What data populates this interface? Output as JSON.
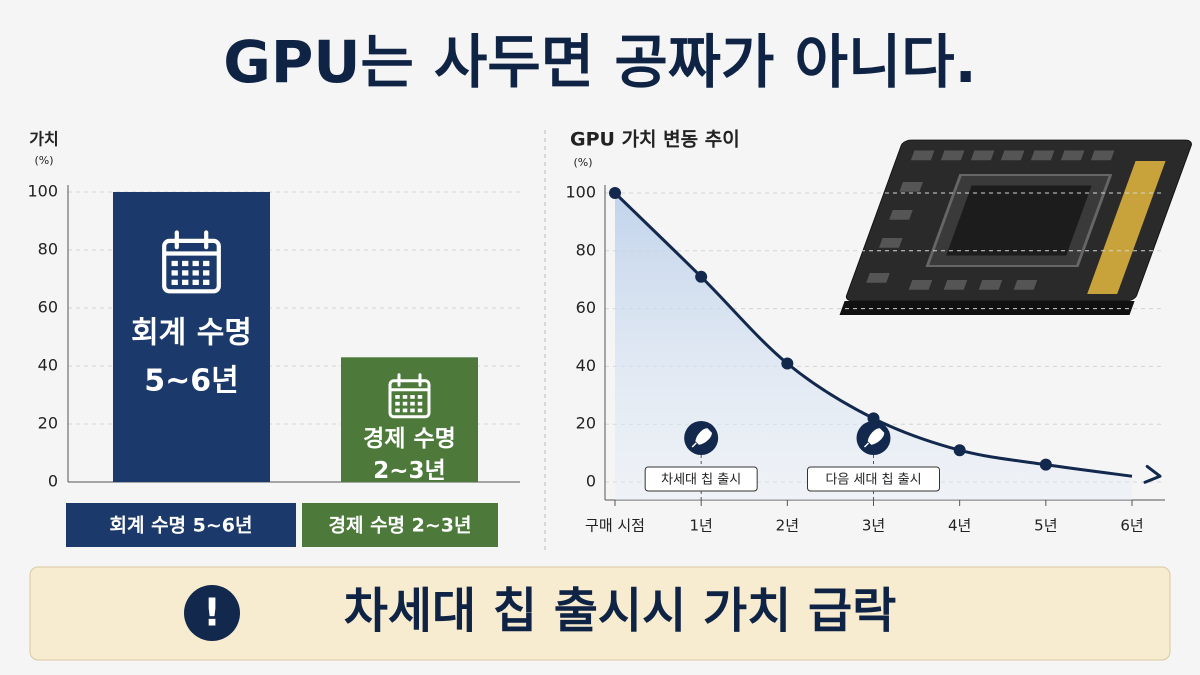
{
  "title": "GPU는 사두면 공짜가 아니다.",
  "chart_data": [
    {
      "type": "bar",
      "y_label": "가치",
      "y_unit": "(%)",
      "categories": [
        "회계 수명 5~6년",
        "경제 수명 2~3년"
      ],
      "bar_labels": [
        [
          "회계 수명",
          "5~6년"
        ],
        [
          "경제 수명",
          "2~3년"
        ]
      ],
      "values": [
        100,
        43
      ],
      "colors": [
        "#1b3a6b",
        "#4d7a3b"
      ],
      "ylim": [
        0,
        100
      ],
      "yticks": [
        0,
        20,
        40,
        60,
        80,
        100
      ],
      "grid": true
    },
    {
      "type": "line",
      "title": "GPU 가치 변동 추이",
      "y_unit": "(%)",
      "categories": [
        "구매 시점",
        "1년",
        "2년",
        "3년",
        "4년",
        "5년",
        "6년"
      ],
      "values": [
        100,
        71,
        41,
        22,
        11,
        6,
        2
      ],
      "color": "#13284d",
      "area_color": "#c9d9ee",
      "ylim": [
        0,
        100
      ],
      "yticks": [
        0,
        20,
        40,
        60,
        80,
        100
      ],
      "grid": true,
      "annotations": [
        {
          "text": "차세대 칩 출시",
          "category": 1
        },
        {
          "text": "다음 세대 칩 출시",
          "category": 3
        }
      ]
    }
  ],
  "banner": {
    "text": "차세대 칩 출시시 가치 급락",
    "icon": "!"
  }
}
